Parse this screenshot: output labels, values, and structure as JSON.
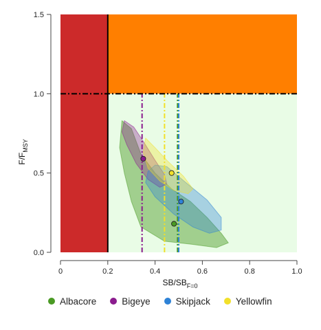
{
  "chart_data": {
    "type": "scatter",
    "xlabel_main": "SB/SB",
    "xlabel_sub": "F=0",
    "ylabel_main": "F/F",
    "ylabel_sub": "MSY",
    "xlim": [
      0,
      1.0
    ],
    "ylim": [
      0,
      1.5
    ],
    "x_ticks": [
      "0",
      "0.2",
      "0.4",
      "0.6",
      "0.8",
      "1.0"
    ],
    "y_ticks": [
      "0.0",
      "0.5",
      "1.0",
      "1.5"
    ],
    "reference_lines": {
      "limit_sb": 0.2,
      "target_f": 1.0
    },
    "zones": [
      {
        "name": "overfished",
        "color": "#cc2a2a",
        "x": [
          0,
          0.2
        ],
        "y": [
          0,
          1.5
        ]
      },
      {
        "name": "overfishing",
        "color": "#ff7f00",
        "x": [
          0.2,
          1.0
        ],
        "y": [
          1.0,
          1.5
        ]
      },
      {
        "name": "safe",
        "color": "#e9fce6",
        "x": [
          0.2,
          1.0
        ],
        "y": [
          0,
          1.0
        ]
      }
    ],
    "series": [
      {
        "name": "Albacore",
        "color": "#4a9a24",
        "fill": "rgba(74,154,36,0.45)",
        "point": {
          "x": 0.48,
          "y": 0.18
        },
        "ref_x": 0.495,
        "region": [
          [
            0.26,
            0.83
          ],
          [
            0.3,
            0.78
          ],
          [
            0.34,
            0.62
          ],
          [
            0.4,
            0.5
          ],
          [
            0.47,
            0.4
          ],
          [
            0.55,
            0.32
          ],
          [
            0.62,
            0.22
          ],
          [
            0.68,
            0.12
          ],
          [
            0.71,
            0.06
          ],
          [
            0.66,
            0.03
          ],
          [
            0.56,
            0.05
          ],
          [
            0.44,
            0.07
          ],
          [
            0.34,
            0.16
          ],
          [
            0.3,
            0.32
          ],
          [
            0.27,
            0.5
          ],
          [
            0.25,
            0.66
          ]
        ]
      },
      {
        "name": "Bigeye",
        "color": "#8b1c8e",
        "fill": "rgba(139,28,142,0.35)",
        "point": {
          "x": 0.35,
          "y": 0.59
        },
        "ref_x": 0.345,
        "region": [
          [
            0.27,
            0.83
          ],
          [
            0.31,
            0.79
          ],
          [
            0.35,
            0.7
          ],
          [
            0.4,
            0.58
          ],
          [
            0.44,
            0.49
          ],
          [
            0.45,
            0.43
          ],
          [
            0.42,
            0.41
          ],
          [
            0.37,
            0.46
          ],
          [
            0.32,
            0.56
          ],
          [
            0.28,
            0.68
          ],
          [
            0.26,
            0.76
          ]
        ]
      },
      {
        "name": "Skipjack",
        "color": "#2e82d6",
        "fill": "rgba(46,130,214,0.35)",
        "point": {
          "x": 0.51,
          "y": 0.32
        },
        "ref_x": 0.5,
        "region": [
          [
            0.4,
            0.55
          ],
          [
            0.45,
            0.54
          ],
          [
            0.53,
            0.44
          ],
          [
            0.62,
            0.33
          ],
          [
            0.68,
            0.22
          ],
          [
            0.68,
            0.14
          ],
          [
            0.63,
            0.12
          ],
          [
            0.56,
            0.16
          ],
          [
            0.48,
            0.24
          ],
          [
            0.4,
            0.35
          ],
          [
            0.36,
            0.44
          ],
          [
            0.37,
            0.51
          ]
        ]
      },
      {
        "name": "Yellowfin",
        "color": "#f2e02a",
        "fill": "rgba(242,224,42,0.35)",
        "point": {
          "x": 0.47,
          "y": 0.5
        },
        "ref_x": 0.44,
        "region": [
          [
            0.36,
            0.72
          ],
          [
            0.4,
            0.66
          ],
          [
            0.45,
            0.58
          ],
          [
            0.52,
            0.48
          ],
          [
            0.56,
            0.4
          ],
          [
            0.54,
            0.37
          ],
          [
            0.48,
            0.39
          ],
          [
            0.42,
            0.45
          ],
          [
            0.37,
            0.53
          ],
          [
            0.35,
            0.63
          ]
        ]
      }
    ],
    "median_lines": [
      {
        "series": "Bigeye",
        "x": 0.345,
        "color": "#8b1c8e",
        "style": "dashdot"
      },
      {
        "series": "Yellowfin",
        "x": 0.44,
        "color": "#f2e02a",
        "style": "dashdot"
      },
      {
        "series": "Albacore",
        "x": 0.495,
        "color": "#4a9a24",
        "style": "dashdot"
      },
      {
        "series": "Skipjack",
        "x": 0.5,
        "color": "#2e82d6",
        "style": "dashdot"
      }
    ],
    "legend_position": "bottom"
  }
}
